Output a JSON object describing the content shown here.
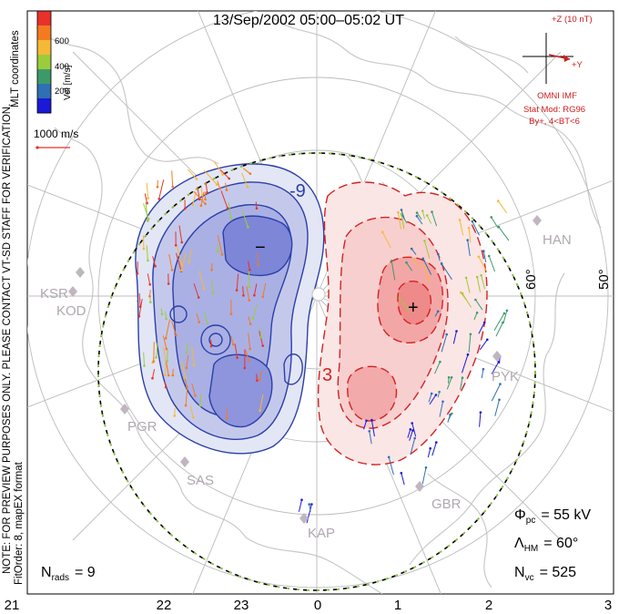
{
  "title": "13/Sep/2002 05:00–05:02 UT",
  "side_note": {
    "line1": "NOTE: FOR PREVIEW PURPOSES ONLY. PLEASE CONTACT VT-SD STAFF FOR VERIFICATION.",
    "line2": "FitOrder: 8, mapEX format"
  },
  "coordinates_label": "MLT coordinates",
  "colorbar": {
    "label": "Vel [m/s]",
    "ticks": [
      "600",
      "400",
      "200"
    ],
    "colors": [
      "#e8312b",
      "#f47a22",
      "#f5b935",
      "#9ccc3c",
      "#3c9a6a",
      "#2f6fb3",
      "#1a1ad6"
    ]
  },
  "scale_vector_label": "1000 m/s",
  "imf": {
    "z_label": "+Z (10 nT)",
    "y_label": "+Y",
    "source": "OMNI IMF",
    "stat_mod": "Stat Mod: RG96",
    "condition": "By+, 4<BT<6",
    "color": "#d01c1c"
  },
  "contour_labels": {
    "negative": "-9",
    "positive": "3",
    "min_marker": "−",
    "max_marker": "+"
  },
  "lat_labels": [
    "60°",
    "50°"
  ],
  "stations": [
    "HAN",
    "KSR",
    "KOD",
    "PGR",
    "SAS",
    "KAP",
    "GBR",
    "PYK"
  ],
  "stats": {
    "phi_symbol": "Φ",
    "phi_sub": "pc",
    "phi_value": "= 55 kV",
    "lambda_symbol": "Λ",
    "lambda_sub": "HM",
    "lambda_value": "= 60°",
    "nvc_symbol": "N",
    "nvc_sub": "vc",
    "nvc_value": "= 525",
    "nrads_symbol": "N",
    "nrads_sub": "rads",
    "nrads_value": "= 9"
  },
  "mlt_ticks": [
    "21",
    "22",
    "23",
    "0",
    "1",
    "2",
    "3"
  ]
}
